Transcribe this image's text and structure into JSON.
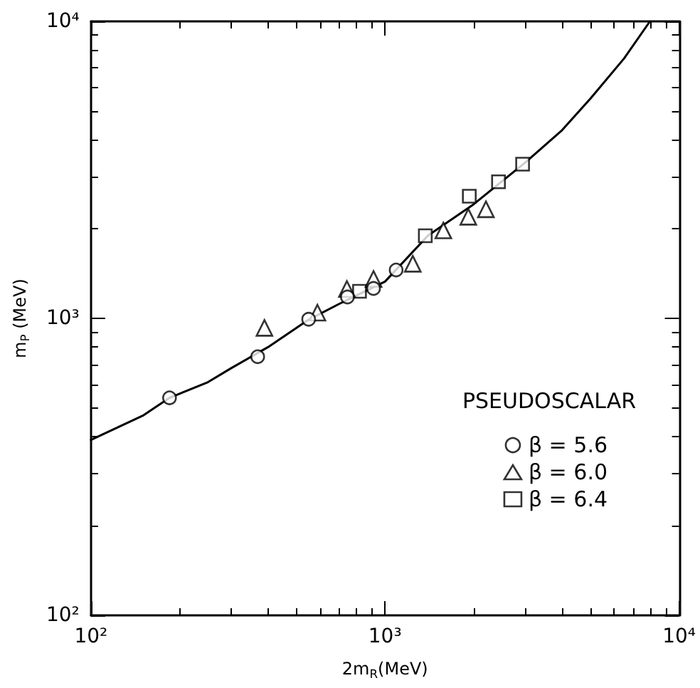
{
  "chart_data": {
    "type": "scatter",
    "xlabel": "2m$_{R}$(MeV)",
    "ylabel": "m$_{P}$ (MeV)",
    "legend_title": "PSEUDOSCALAR",
    "log": "xy",
    "xlim": [
      100,
      10000
    ],
    "ylim": [
      100,
      10000
    ],
    "xticks": [
      {
        "value": 100,
        "label": "10²"
      },
      {
        "value": 1000,
        "label": "10³"
      },
      {
        "value": 10000,
        "label": "10⁴"
      }
    ],
    "yticks": [
      {
        "value": 100,
        "label": "10²"
      },
      {
        "value": 1000,
        "label": "10³"
      },
      {
        "value": 10000,
        "label": "10⁴"
      }
    ],
    "grid": false,
    "legend": "right",
    "series": [
      {
        "name": "β = 5.6",
        "color": "#000000",
        "marker": "circle",
        "x": [
          185,
          369,
          550,
          745,
          914,
          1091
        ],
        "values": [
          540,
          743,
          993,
          1180,
          1261,
          1455
        ]
      },
      {
        "name": "β = 6.0",
        "color": "#000000",
        "marker": "triangle",
        "x": [
          389,
          589,
          742,
          914,
          1243,
          1579,
          1920,
          2204
        ],
        "values": [
          929,
          1045,
          1256,
          1358,
          1527,
          1977,
          2198,
          2329
        ]
      },
      {
        "name": "β = 6.4",
        "color": "#000000",
        "marker": "square",
        "x": [
          819,
          1371,
          1935,
          2432,
          2937
        ],
        "values": [
          1233,
          1897,
          2577,
          2884,
          3305
        ]
      },
      {
        "type": "line",
        "color": "#000000",
        "marker": "none",
        "line_style": "solid",
        "x": [
          100,
          150,
          185,
          250,
          300,
          400,
          550,
          700,
          1000,
          1400,
          2000,
          3000,
          4000,
          5000,
          6500,
          7960
        ],
        "values": [
          390,
          470,
          540,
          610,
          680,
          800,
          990,
          1120,
          1330,
          1900,
          2420,
          3350,
          4300,
          5500,
          7500,
          10000
        ]
      }
    ]
  }
}
